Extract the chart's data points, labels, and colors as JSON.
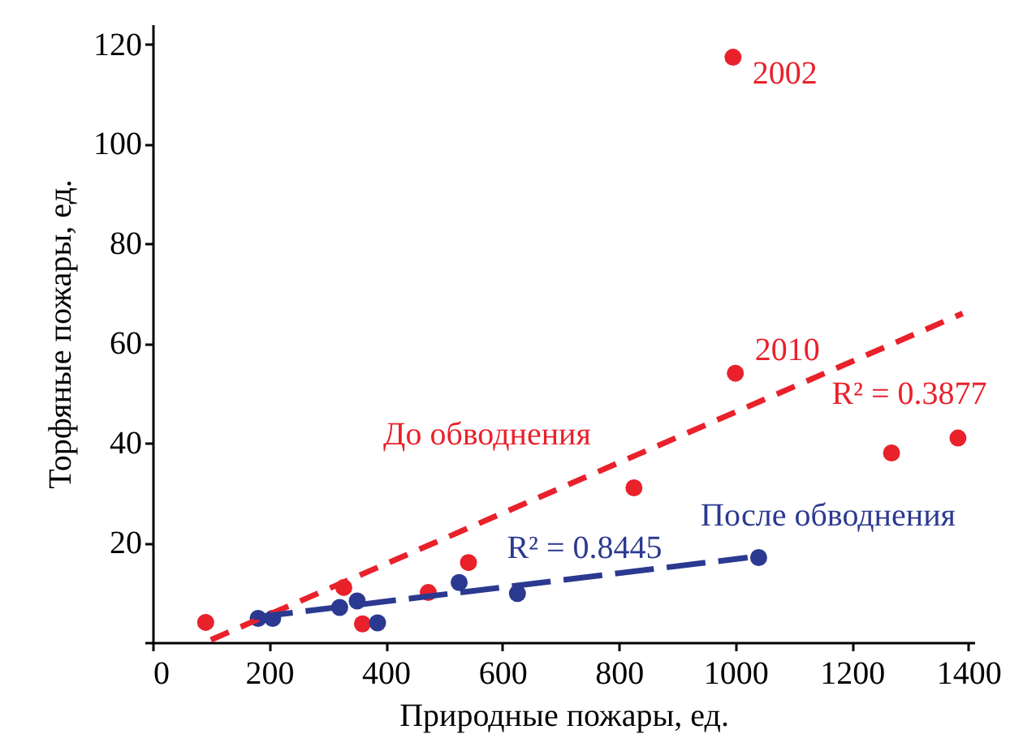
{
  "chart_data": {
    "type": "scatter",
    "xlabel": "Природные пожары, ед.",
    "ylabel": "Торфяные пожары, ед.",
    "xlim": [
      0,
      1410
    ],
    "ylim": [
      0,
      124
    ],
    "xticks": [
      0,
      200,
      400,
      600,
      800,
      1000,
      1200,
      1400
    ],
    "yticks": [
      {
        "value": 0,
        "label": null
      },
      20,
      40,
      60,
      80,
      100,
      120
    ],
    "grid": false,
    "marker": "circle",
    "series": [
      {
        "color": "#e8212b",
        "x": [
          91,
          328,
          360,
          473,
          542,
          826,
          996,
          1000,
          1268,
          1382
        ],
        "values": [
          4,
          11,
          3.7,
          10,
          16,
          31,
          117.4,
          54,
          38,
          41
        ]
      },
      {
        "color": "#2b3990",
        "x": [
          181,
          206,
          321,
          351,
          386,
          526,
          626,
          1040
        ],
        "values": [
          4.8,
          4.8,
          7,
          8.3,
          3.9,
          12,
          9.8,
          17
        ]
      },
      {
        "type": "line",
        "marker": "none",
        "color": "#e8212b",
        "line_style": "dashed",
        "x": [
          100,
          1390
        ],
        "values": [
          0.5,
          66
        ]
      },
      {
        "type": "line",
        "marker": "none",
        "color": "#2b3990",
        "line_style": "dashed",
        "x": [
          174,
          1021
        ],
        "values": [
          5,
          17
        ]
      }
    ],
    "annotations": [
      {
        "text": "2002",
        "x": 996,
        "y": 117.4
      },
      {
        "text": "2010",
        "x": 1000,
        "y": 54
      },
      "R² = 0.3877",
      "До обводнения",
      "После обводнения",
      "R² = 0.8445"
    ]
  }
}
